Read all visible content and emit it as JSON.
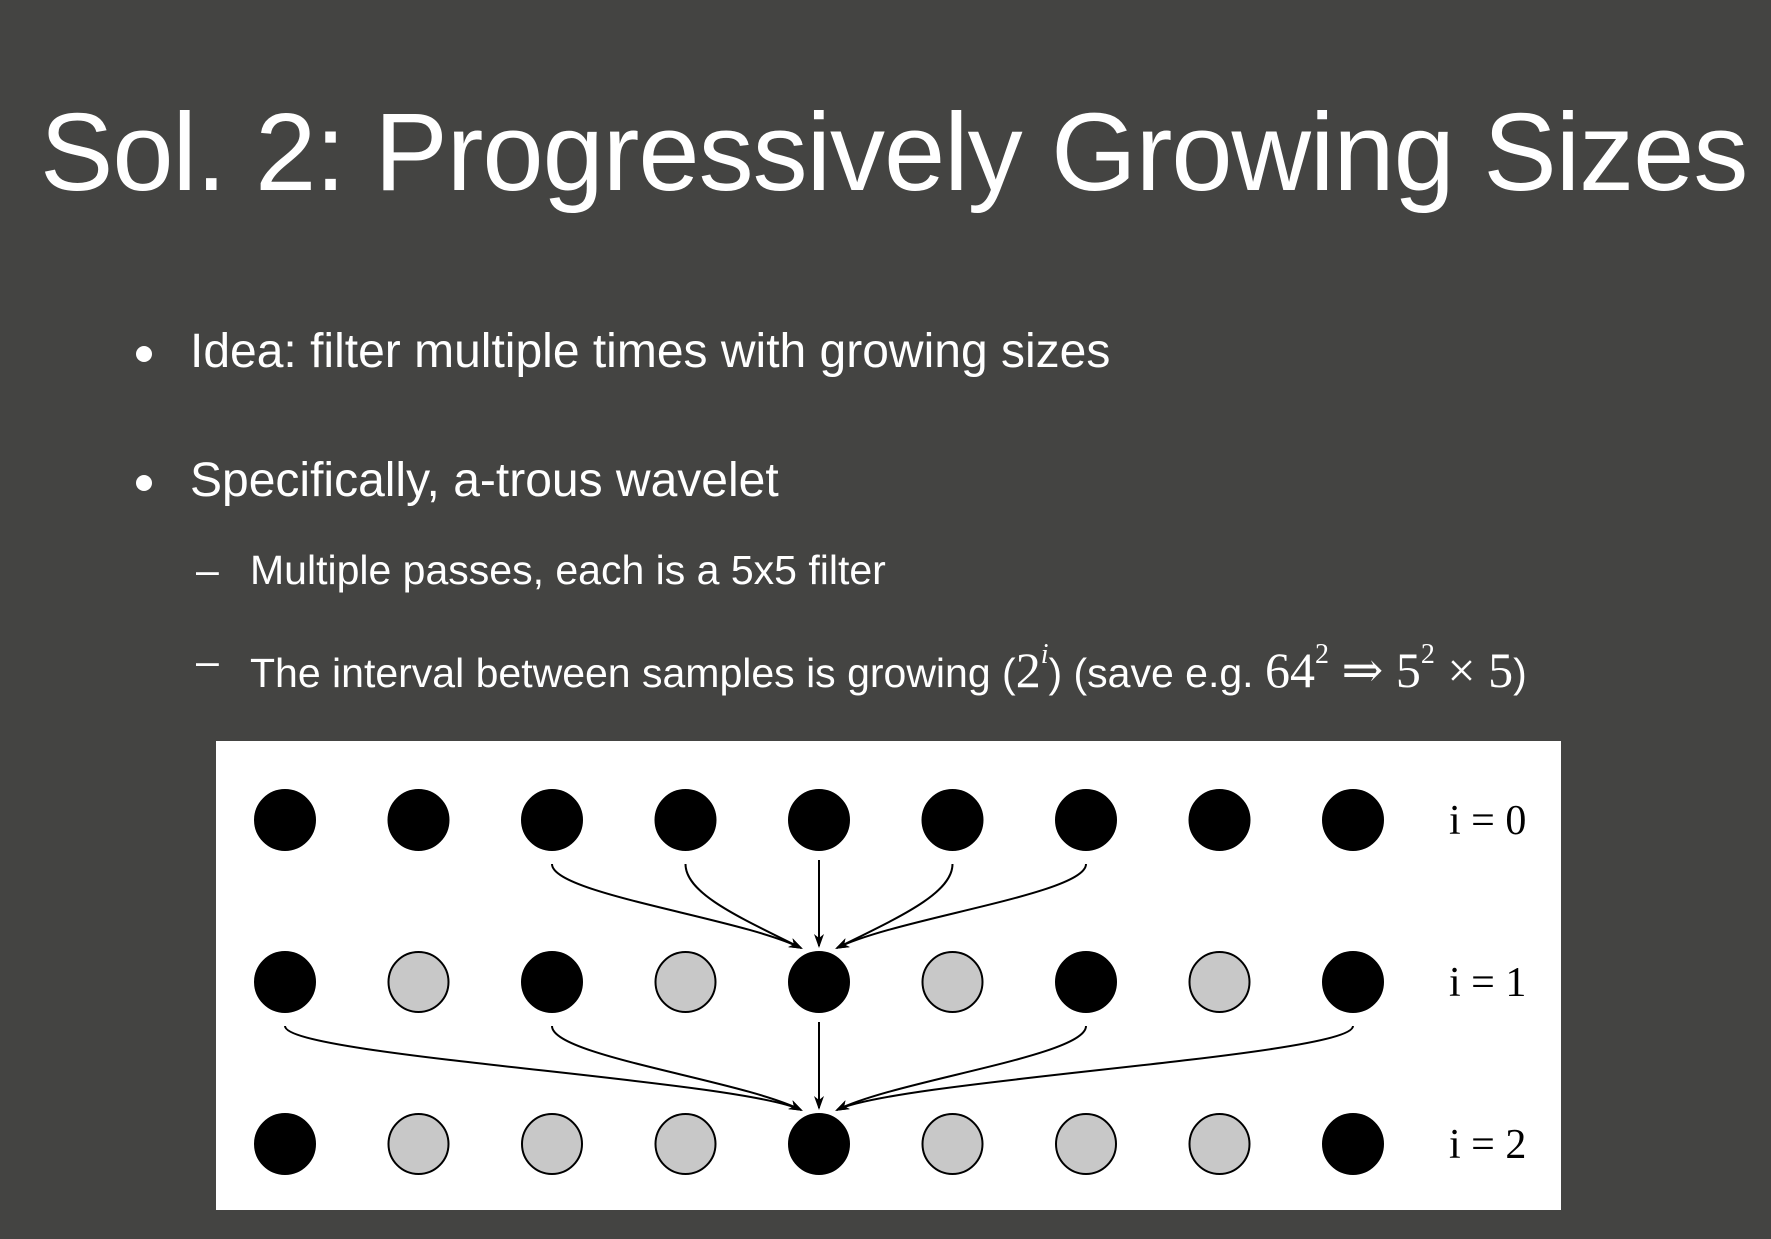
{
  "title": "Sol. 2: Progressively Growing Sizes",
  "bullets": [
    {
      "text": "Idea: filter multiple times with growing sizes"
    },
    {
      "text": "Specifically, a-trous wavelet"
    }
  ],
  "sub_bullets": [
    {
      "text": "Multiple passes, each is a 5x5 filter"
    },
    {
      "prefix": "The interval between samples is growing (",
      "math_base": "2",
      "math_exp": "i",
      "middle": ") (save e.g. ",
      "math_a": "64",
      "math_a_exp": "2",
      "arrow": "⇒",
      "math_b": "5",
      "math_b_exp": "2",
      "times": "×",
      "math_c": "5",
      "suffix": ")"
    }
  ],
  "figure": {
    "rows": [
      {
        "label": "i = 0",
        "filled": [
          1,
          1,
          1,
          1,
          1,
          1,
          1,
          1,
          1
        ]
      },
      {
        "label": "i = 1",
        "filled": [
          1,
          0,
          1,
          0,
          1,
          0,
          1,
          0,
          1
        ]
      },
      {
        "label": "i = 2",
        "filled": [
          1,
          0,
          0,
          0,
          1,
          0,
          0,
          0,
          1
        ]
      }
    ],
    "connections": [
      {
        "from_row": 0,
        "to_row": 1,
        "sources": [
          2,
          3,
          4,
          5,
          6
        ],
        "target": 4
      },
      {
        "from_row": 1,
        "to_row": 2,
        "sources": [
          0,
          2,
          4,
          6,
          8
        ],
        "target": 4
      }
    ],
    "colors": {
      "filled": "#000000",
      "empty": "#c8c8c8",
      "stroke": "#000000"
    }
  }
}
